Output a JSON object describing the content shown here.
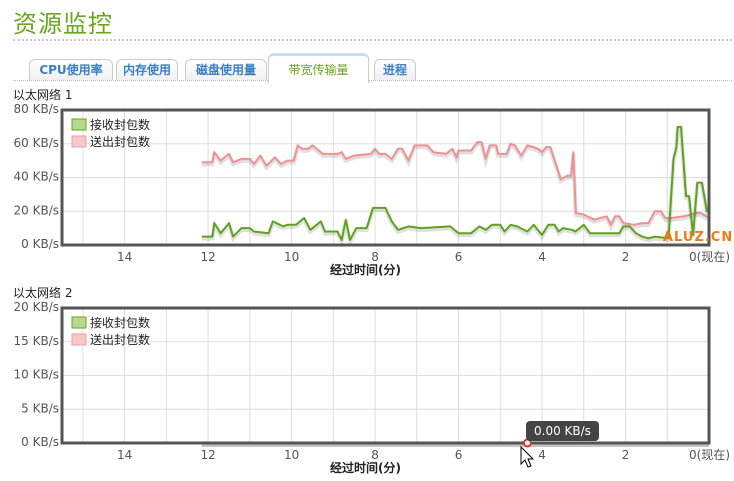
{
  "page_title": "资源监控",
  "tabs": [
    {
      "label": "CPU使用率"
    },
    {
      "label": "内存使用"
    },
    {
      "label": "磁盘使用量"
    },
    {
      "label": "带宽传输量",
      "active": true
    },
    {
      "label": "进程"
    }
  ],
  "colors": {
    "receive": "#5fa21e",
    "send": "#f09090",
    "accent": "#6aa51e"
  },
  "watermark": "ALUZ.CN",
  "tooltip": "0.00 KB/s",
  "chart_data": [
    {
      "type": "line",
      "title": "以太网络 1",
      "xlabel": "经过时间(分)",
      "xlim": [
        15.5,
        0
      ],
      "ylim": [
        0,
        80
      ],
      "yticks": [
        "0 KB/s",
        "20 KB/s",
        "40 KB/s",
        "60 KB/s",
        "80 KB/s"
      ],
      "ytick_values": [
        0,
        20,
        40,
        60,
        80
      ],
      "xticks": [
        "14",
        "12",
        "10",
        "8",
        "6",
        "4",
        "2",
        "0(现在)"
      ],
      "xtick_values": [
        14,
        12,
        10,
        8,
        6,
        4,
        2,
        0
      ],
      "legend": [
        "接收封包数",
        "送出封包数"
      ],
      "legend_position": "top-left",
      "grid": true,
      "series": [
        {
          "name": "接收封包数",
          "x": [
            12.15,
            11.9,
            11.85,
            11.7,
            11.5,
            11.4,
            11.2,
            11.0,
            10.9,
            10.55,
            10.45,
            10.2,
            10.1,
            9.9,
            9.7,
            9.55,
            9.3,
            9.2,
            8.9,
            8.8,
            8.7,
            8.6,
            8.45,
            8.2,
            8.05,
            7.75,
            7.6,
            7.45,
            7.2,
            6.9,
            6.2,
            6.0,
            5.7,
            5.5,
            5.35,
            5.2,
            5.0,
            4.9,
            4.75,
            4.6,
            4.35,
            4.2,
            4.0,
            3.85,
            3.7,
            3.6,
            3.5,
            3.28,
            3.2,
            3.0,
            2.85,
            2.5,
            2.15,
            2.05,
            1.9,
            1.75,
            1.6,
            1.45,
            1.3,
            0.97,
            0.85,
            0.78,
            0.75,
            0.67,
            0.55,
            0.48,
            0.38,
            0.28,
            0.17,
            0.05,
            0
          ],
          "values": [
            5,
            5,
            13,
            7,
            13,
            5,
            10,
            10,
            8,
            7,
            14,
            11,
            12,
            12,
            16,
            9,
            14,
            8,
            8,
            3,
            15,
            3,
            10,
            10,
            22,
            22,
            14,
            9,
            11,
            10,
            11,
            7,
            7,
            11,
            9,
            12,
            12,
            8,
            12,
            11,
            8,
            12,
            6,
            12,
            12,
            8,
            10,
            9,
            8,
            12,
            7,
            7,
            7,
            11,
            11,
            7,
            5,
            4,
            5,
            4,
            51,
            58,
            70,
            70,
            29,
            29,
            6,
            37,
            37,
            20,
            20
          ]
        },
        {
          "name": "送出封包数",
          "x": [
            12.15,
            11.9,
            11.85,
            11.7,
            11.5,
            11.4,
            11.2,
            11.0,
            10.9,
            10.75,
            10.6,
            10.4,
            10.25,
            10.1,
            9.95,
            9.85,
            9.75,
            9.6,
            9.5,
            9.25,
            8.9,
            8.8,
            8.7,
            8.5,
            8.1,
            8.0,
            7.9,
            7.75,
            7.6,
            7.45,
            7.35,
            7.2,
            7.05,
            6.75,
            6.6,
            6.3,
            6.15,
            6.05,
            6.0,
            5.7,
            5.55,
            5.45,
            5.35,
            5.25,
            5.1,
            5.05,
            4.85,
            4.75,
            4.65,
            4.5,
            4.35,
            4.2,
            4.1,
            4.0,
            3.9,
            3.8,
            3.55,
            3.4,
            3.3,
            3.25,
            3.19,
            3.0,
            2.75,
            2.6,
            2.45,
            2.35,
            2.25,
            2.15,
            2.05,
            1.8,
            1.6,
            1.45,
            1.3,
            1.15,
            1.05,
            0.9,
            0.6,
            0.3,
            0.2,
            0
          ],
          "values": [
            49,
            49,
            55,
            50,
            54,
            49,
            51,
            51,
            48,
            53,
            47,
            52,
            48,
            50,
            50,
            59,
            57,
            57,
            59,
            54,
            54,
            55,
            51,
            53,
            54,
            57,
            54,
            54,
            51,
            57,
            57,
            50,
            59,
            59,
            55,
            54,
            57,
            52,
            56,
            56,
            61,
            61,
            51,
            59,
            59,
            54,
            54,
            60,
            59,
            53,
            59,
            58,
            57,
            55,
            58,
            58,
            39,
            41,
            41,
            55,
            19,
            18,
            15,
            16,
            17,
            12,
            17,
            17,
            13,
            12,
            13,
            13,
            20,
            20,
            16,
            16,
            17,
            19,
            19,
            16
          ]
        }
      ]
    },
    {
      "type": "line",
      "title": "以太网络 2",
      "xlabel": "经过时间(分)",
      "xlim": [
        15.5,
        0
      ],
      "ylim": [
        0,
        20
      ],
      "yticks": [
        "0 KB/s",
        "5 KB/s",
        "10 KB/s",
        "15 KB/s",
        "20 KB/s"
      ],
      "ytick_values": [
        0,
        5,
        10,
        15,
        20
      ],
      "xticks": [
        "14",
        "12",
        "10",
        "8",
        "6",
        "4",
        "2",
        "0(现在)"
      ],
      "xtick_values": [
        14,
        12,
        10,
        8,
        6,
        4,
        2,
        0
      ],
      "legend": [
        "接收封包数",
        "送出封包数"
      ],
      "legend_position": "top-left",
      "grid": true,
      "hover_point": {
        "x": 4.35,
        "y": 0
      },
      "series": [
        {
          "name": "接收封包数",
          "x": [
            12.15,
            0
          ],
          "values": [
            0,
            0
          ]
        },
        {
          "name": "送出封包数",
          "x": [
            12.15,
            0
          ],
          "values": [
            0,
            0
          ]
        }
      ]
    }
  ]
}
